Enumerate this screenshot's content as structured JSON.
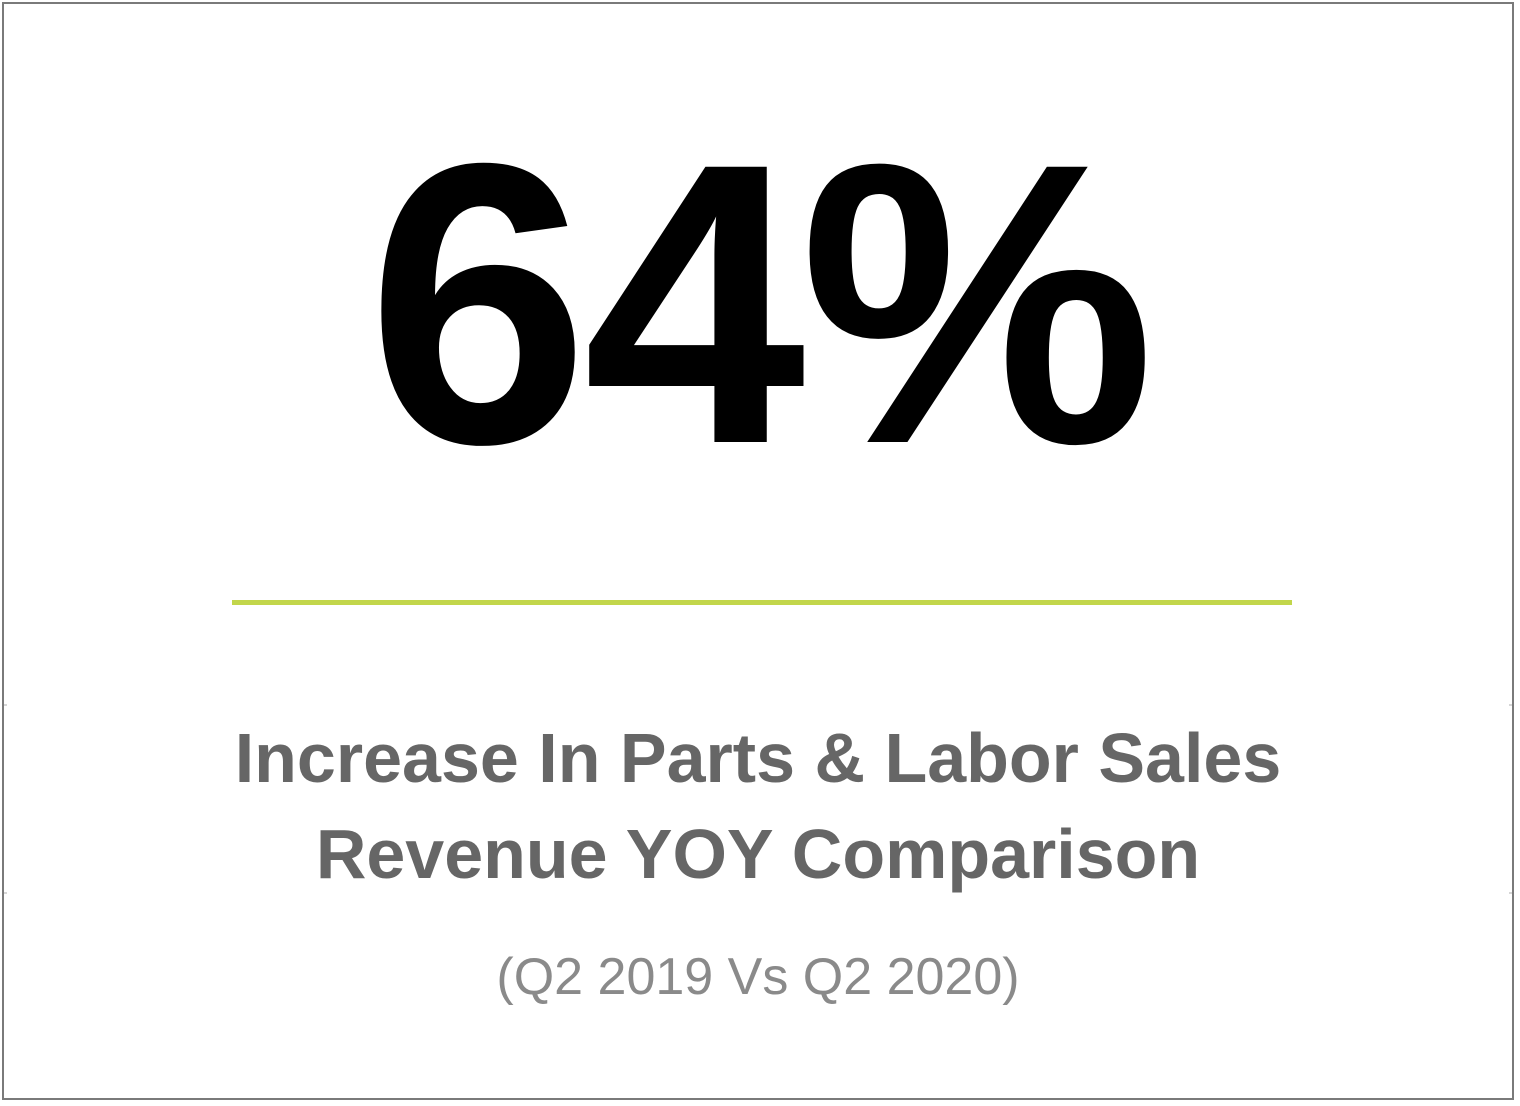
{
  "stat": {
    "value": "64%",
    "headline_line1": "Increase In Parts & Labor Sales",
    "headline_line2": "Revenue YOY Comparison",
    "period": "(Q2 2019 Vs Q2 2020)"
  },
  "colors": {
    "divider": "#c2d64b",
    "headline": "#666666",
    "period": "#8a8a8a",
    "border": "#7a7a7a"
  }
}
